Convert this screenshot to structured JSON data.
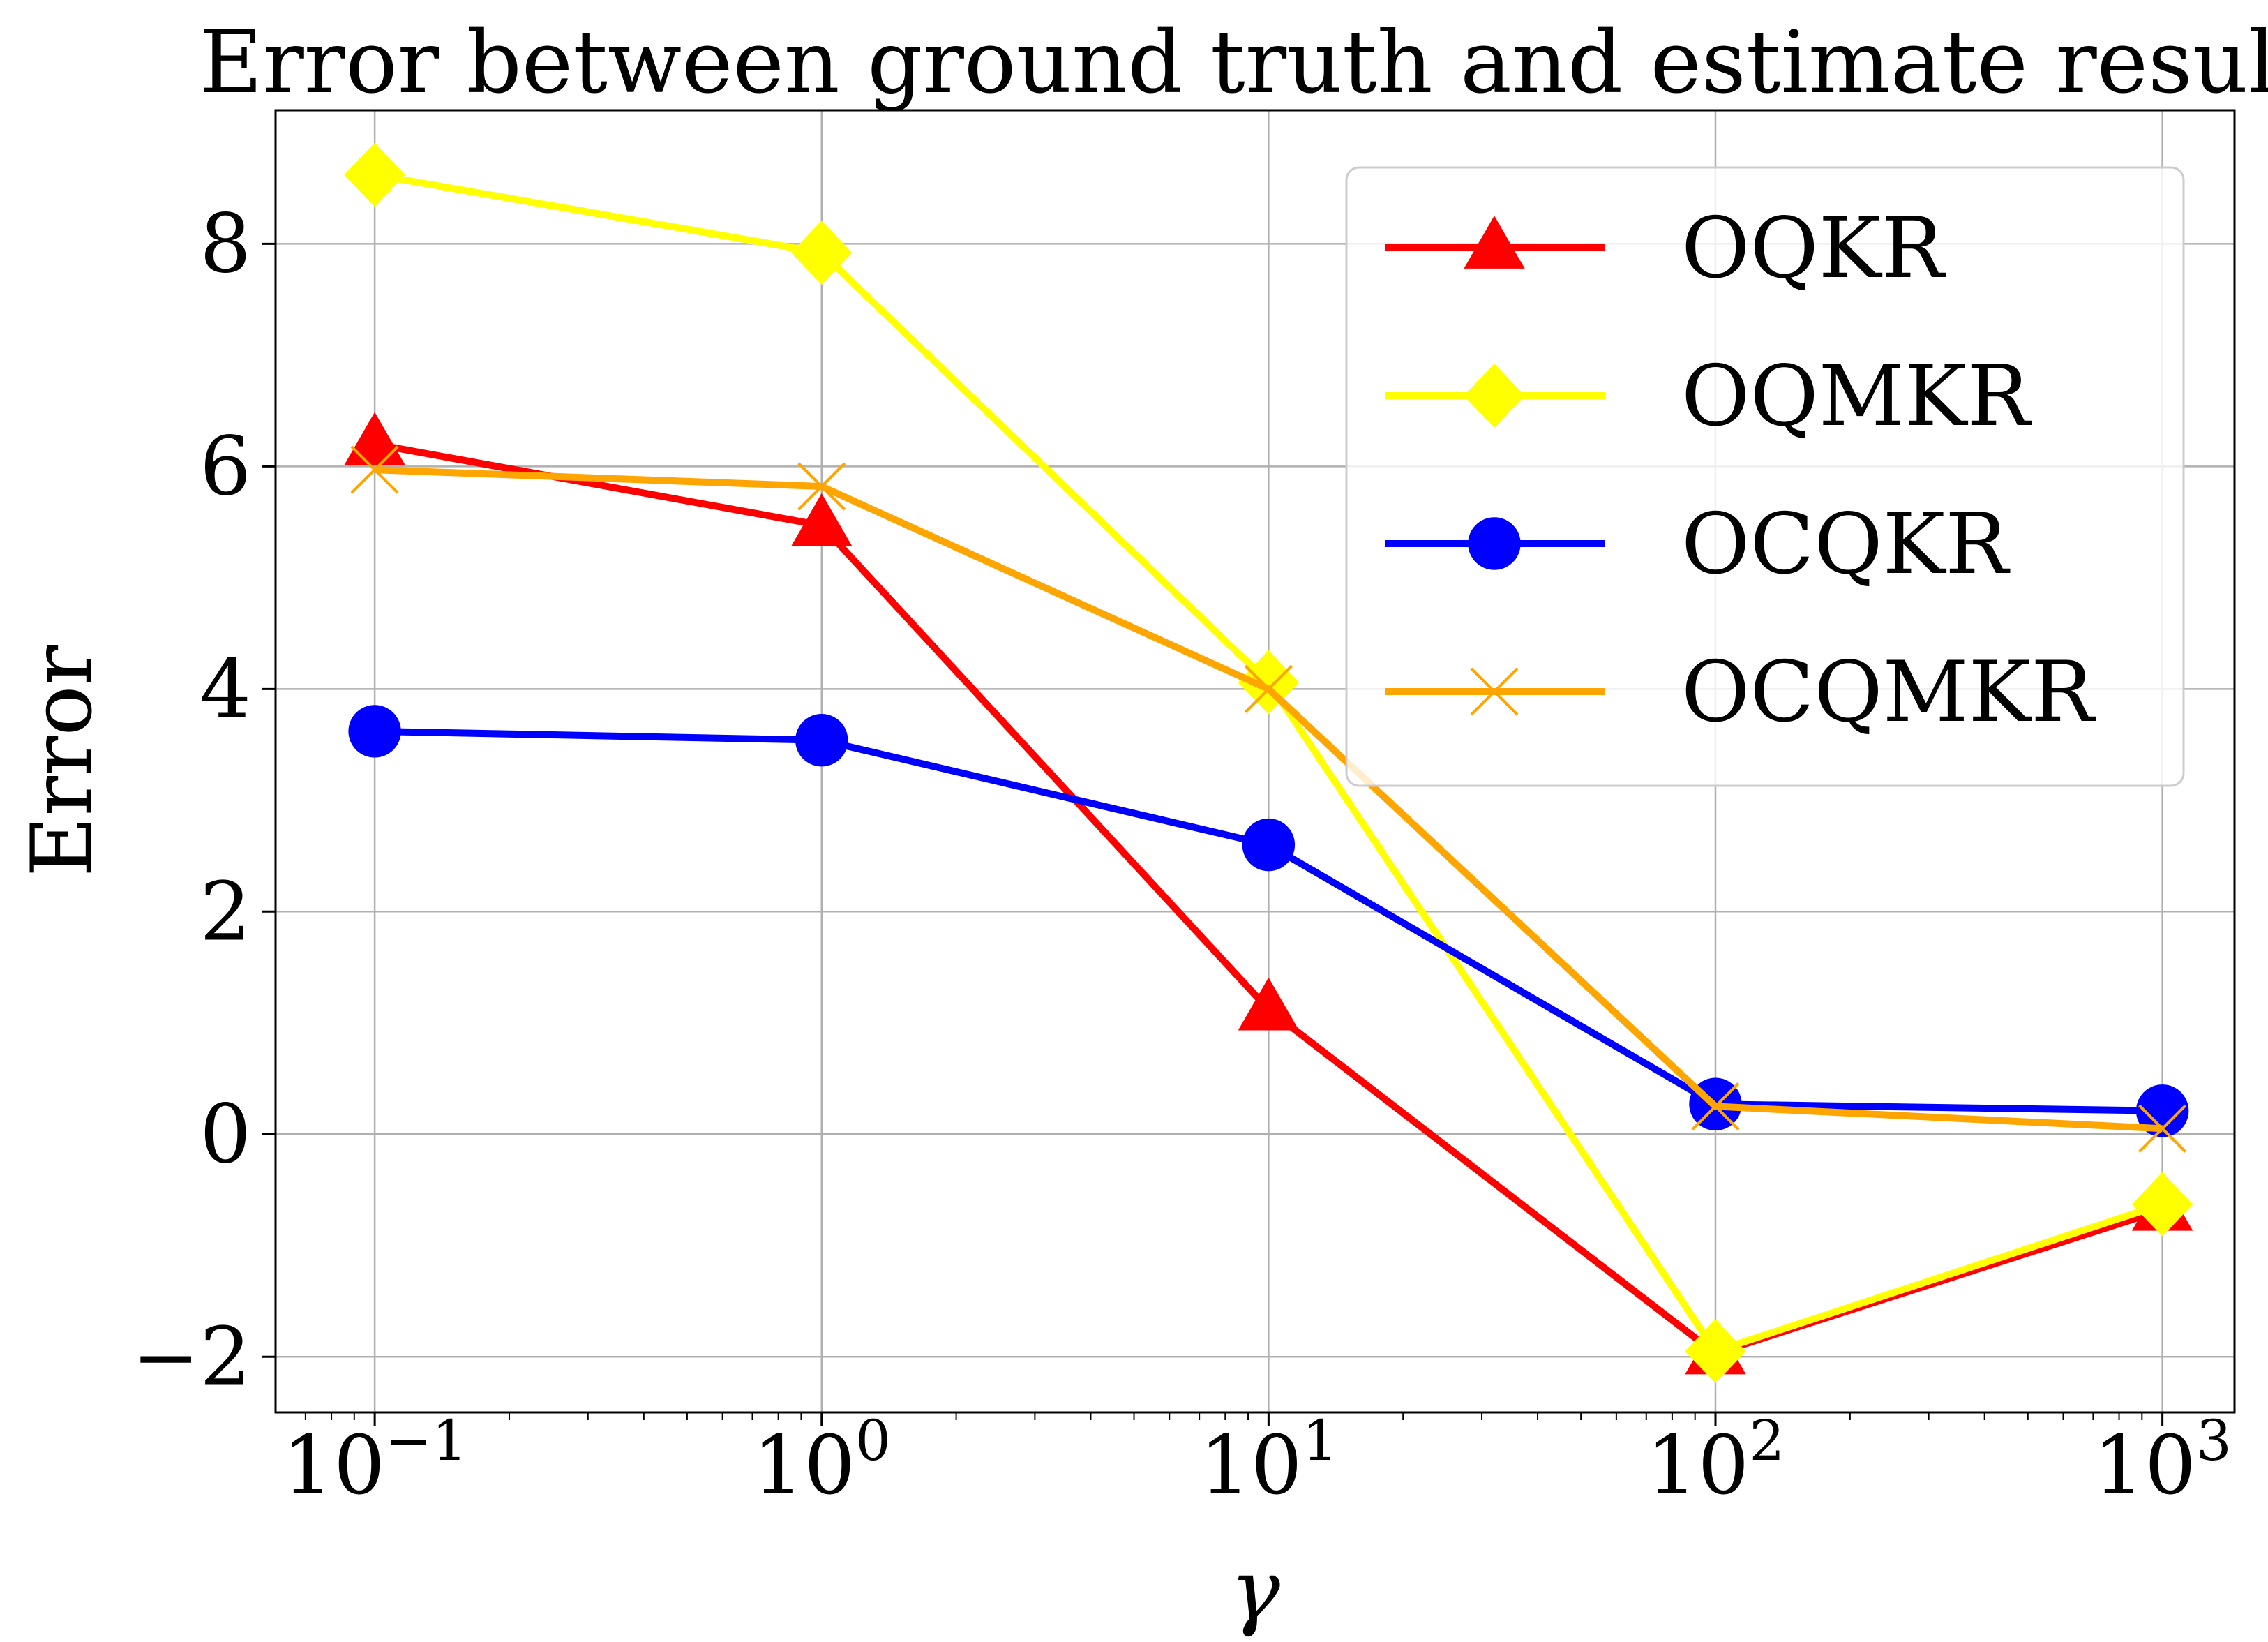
{
  "chart_data": {
    "type": "line",
    "title": "Error between ground truth and estimate result",
    "xlabel": "γ",
    "ylabel": "Error",
    "xscale": "log",
    "x": [
      0.1,
      1,
      10,
      100,
      1000
    ],
    "x_tick_labels": [
      {
        "base": "10",
        "exp": "−1"
      },
      {
        "base": "10",
        "exp": "0"
      },
      {
        "base": "10",
        "exp": "1"
      },
      {
        "base": "10",
        "exp": "2"
      },
      {
        "base": "10",
        "exp": "3"
      }
    ],
    "xlim": [
      0.06,
      1450
    ],
    "y_ticks": [
      -2,
      0,
      2,
      4,
      6,
      8
    ],
    "y_tick_labels": [
      "−2",
      "0",
      "2",
      "4",
      "6",
      "8"
    ],
    "ylim": [
      -2.5,
      9.2
    ],
    "grid": true,
    "legend_position": "upper right",
    "series": [
      {
        "name": "OQKR",
        "color": "#ff0000",
        "marker": "triangle",
        "values": [
          6.2,
          5.47,
          1.12,
          -1.97,
          -0.68
        ]
      },
      {
        "name": "OQMKR",
        "color": "#ffff00",
        "marker": "diamond",
        "values": [
          8.62,
          7.92,
          4.06,
          -1.95,
          -0.63
        ]
      },
      {
        "name": "OCQKR",
        "color": "#0000ff",
        "marker": "circle",
        "values": [
          3.62,
          3.54,
          2.6,
          0.27,
          0.21
        ]
      },
      {
        "name": "OCQMKR",
        "color": "#ffa500",
        "marker": "x",
        "values": [
          5.97,
          5.82,
          4.0,
          0.25,
          0.05
        ]
      }
    ]
  }
}
